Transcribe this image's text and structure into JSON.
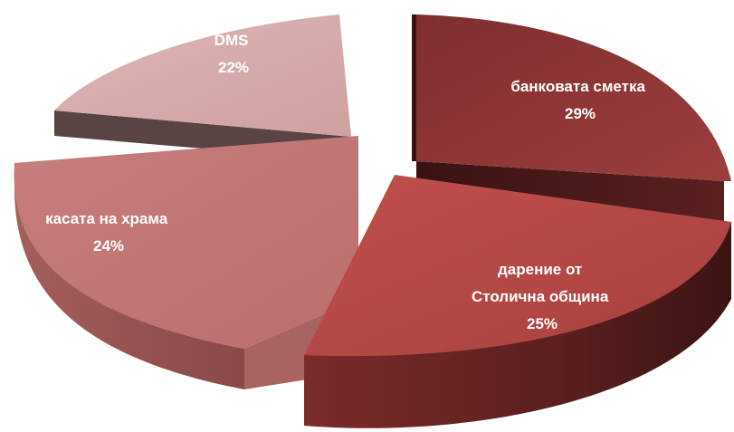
{
  "chart_data": {
    "type": "pie",
    "title": "",
    "slices": [
      {
        "label_lines": [
          "банковата сметка"
        ],
        "percent_label": "29%",
        "value": 29,
        "color": "#93393A",
        "side_color": "#4A1A1A",
        "exploded": true
      },
      {
        "label_lines": [
          "дарение от",
          "Столична община"
        ],
        "percent_label": "25%",
        "value": 25,
        "color": "#B24744",
        "side_color": "#5C2220",
        "exploded": true
      },
      {
        "label_lines": [
          "касата на храма"
        ],
        "percent_label": "24%",
        "value": 24,
        "color": "#C37575",
        "side_color": "#8F4D4D",
        "exploded": true
      },
      {
        "label_lines": [
          "DMS"
        ],
        "percent_label": "22%",
        "value": 22,
        "color": "#D6AAAA",
        "side_color": "#5A4343",
        "exploded": true
      }
    ],
    "legend": "none",
    "style": "3d-exploded"
  }
}
